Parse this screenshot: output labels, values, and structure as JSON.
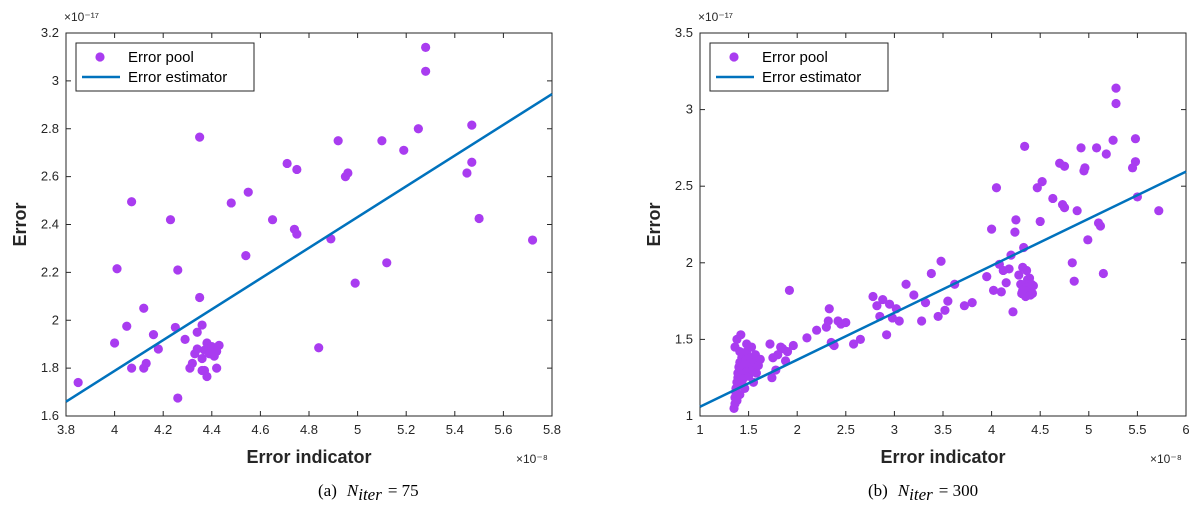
{
  "colors": {
    "points": "#a93cf0",
    "line": "#0072bd"
  },
  "chart_data": [
    {
      "type": "scatter",
      "caption": "(a)",
      "niter_value": "75",
      "xlabel": "Error indicator",
      "ylabel": "Error",
      "x_exponent": "×10⁻⁸",
      "y_exponent": "×10⁻¹⁷",
      "xlim": [
        3.8,
        5.8
      ],
      "ylim": [
        1.6,
        3.2
      ],
      "xticks": [
        3.8,
        4,
        4.2,
        4.4,
        4.6,
        4.8,
        5,
        5.2,
        5.4,
        5.6,
        5.8
      ],
      "yticks": [
        1.6,
        1.8,
        2,
        2.2,
        2.4,
        2.6,
        2.8,
        3,
        3.2
      ],
      "xtick_labels": [
        "3.8",
        "4",
        "4.2",
        "4.4",
        "4.6",
        "4.8",
        "5",
        "5.2",
        "5.4",
        "5.6",
        "5.8"
      ],
      "ytick_labels": [
        "1.6",
        "1.8",
        "2",
        "2.2",
        "2.4",
        "2.6",
        "2.8",
        "3",
        "3.2"
      ],
      "legend": {
        "position": "top-left",
        "entries": [
          "Error pool",
          "Error estimator"
        ]
      },
      "series": [
        {
          "name": "Error pool",
          "kind": "scatter",
          "points": [
            [
              3.85,
              1.74
            ],
            [
              4.0,
              1.905
            ],
            [
              4.01,
              2.215
            ],
            [
              4.05,
              1.975
            ],
            [
              4.07,
              1.8
            ],
            [
              4.07,
              2.495
            ],
            [
              4.12,
              1.8
            ],
            [
              4.12,
              2.05
            ],
            [
              4.13,
              1.82
            ],
            [
              4.16,
              1.94
            ],
            [
              4.18,
              1.88
            ],
            [
              4.23,
              2.42
            ],
            [
              4.26,
              2.21
            ],
            [
              4.26,
              1.675
            ],
            [
              4.29,
              1.92
            ],
            [
              4.31,
              1.8
            ],
            [
              4.32,
              1.82
            ],
            [
              4.33,
              1.86
            ],
            [
              4.34,
              1.95
            ],
            [
              4.35,
              2.095
            ],
            [
              4.35,
              2.765
            ],
            [
              4.36,
              1.98
            ],
            [
              4.36,
              1.84
            ],
            [
              4.37,
              1.79
            ],
            [
              4.37,
              1.875
            ],
            [
              4.38,
              1.905
            ],
            [
              4.38,
              1.765
            ],
            [
              4.39,
              1.86
            ],
            [
              4.4,
              1.89
            ],
            [
              4.41,
              1.85
            ],
            [
              4.42,
              1.8
            ],
            [
              4.43,
              1.895
            ],
            [
              4.42,
              1.87
            ],
            [
              4.36,
              1.79
            ],
            [
              4.34,
              1.88
            ],
            [
              4.25,
              1.97
            ],
            [
              4.48,
              2.49
            ],
            [
              4.54,
              2.27
            ],
            [
              4.55,
              2.535
            ],
            [
              4.65,
              2.42
            ],
            [
              4.71,
              2.655
            ],
            [
              4.74,
              2.38
            ],
            [
              4.75,
              2.36
            ],
            [
              4.75,
              2.63
            ],
            [
              4.84,
              1.885
            ],
            [
              4.89,
              2.34
            ],
            [
              4.92,
              2.75
            ],
            [
              4.95,
              2.6
            ],
            [
              4.96,
              2.615
            ],
            [
              4.99,
              2.155
            ],
            [
              5.1,
              2.75
            ],
            [
              5.12,
              2.24
            ],
            [
              5.19,
              2.71
            ],
            [
              5.25,
              2.8
            ],
            [
              5.28,
              3.14
            ],
            [
              5.28,
              3.04
            ],
            [
              5.45,
              2.615
            ],
            [
              5.47,
              2.815
            ],
            [
              5.47,
              2.66
            ],
            [
              5.5,
              2.425
            ],
            [
              5.72,
              2.335
            ]
          ]
        },
        {
          "name": "Error estimator",
          "kind": "line",
          "points": [
            [
              3.8,
              1.66
            ],
            [
              5.8,
              2.945
            ]
          ]
        }
      ]
    },
    {
      "type": "scatter",
      "caption": "(b)",
      "niter_value": "300",
      "xlabel": "Error indicator",
      "ylabel": "Error",
      "x_exponent": "×10⁻⁸",
      "y_exponent": "×10⁻¹⁷",
      "xlim": [
        1,
        6
      ],
      "ylim": [
        1,
        3.5
      ],
      "xticks": [
        1,
        1.5,
        2,
        2.5,
        3,
        3.5,
        4,
        4.5,
        5,
        5.5,
        6
      ],
      "yticks": [
        1,
        1.5,
        2,
        2.5,
        3,
        3.5
      ],
      "xtick_labels": [
        "1",
        "1.5",
        "2",
        "2.5",
        "3",
        "3.5",
        "4",
        "4.5",
        "5",
        "5.5",
        "6"
      ],
      "ytick_labels": [
        "1",
        "1.5",
        "2",
        "2.5",
        "3",
        "3.5"
      ],
      "legend": {
        "position": "top-left",
        "entries": [
          "Error pool",
          "Error estimator"
        ]
      },
      "series": [
        {
          "name": "Error pool",
          "kind": "scatter",
          "points": [
            [
              1.35,
              1.05
            ],
            [
              1.36,
              1.08
            ],
            [
              1.36,
              1.12
            ],
            [
              1.37,
              1.15
            ],
            [
              1.37,
              1.18
            ],
            [
              1.38,
              1.1
            ],
            [
              1.38,
              1.22
            ],
            [
              1.39,
              1.25
            ],
            [
              1.39,
              1.28
            ],
            [
              1.4,
              1.2
            ],
            [
              1.4,
              1.32
            ],
            [
              1.41,
              1.35
            ],
            [
              1.41,
              1.14
            ],
            [
              1.42,
              1.27
            ],
            [
              1.43,
              1.38
            ],
            [
              1.43,
              1.3
            ],
            [
              1.44,
              1.24
            ],
            [
              1.45,
              1.4
            ],
            [
              1.45,
              1.33
            ],
            [
              1.46,
              1.18
            ],
            [
              1.47,
              1.36
            ],
            [
              1.48,
              1.29
            ],
            [
              1.48,
              1.42
            ],
            [
              1.5,
              1.34
            ],
            [
              1.5,
              1.26
            ],
            [
              1.52,
              1.38
            ],
            [
              1.53,
              1.45
            ],
            [
              1.54,
              1.3
            ],
            [
              1.55,
              1.22
            ],
            [
              1.56,
              1.35
            ],
            [
              1.57,
              1.4
            ],
            [
              1.58,
              1.28
            ],
            [
              1.6,
              1.33
            ],
            [
              1.62,
              1.37
            ],
            [
              1.38,
              1.5
            ],
            [
              1.42,
              1.53
            ],
            [
              1.48,
              1.47
            ],
            [
              1.36,
              1.45
            ],
            [
              1.44,
              1.2
            ],
            [
              1.41,
              1.42
            ],
            [
              1.72,
              1.47
            ],
            [
              1.74,
              1.25
            ],
            [
              1.75,
              1.38
            ],
            [
              1.78,
              1.3
            ],
            [
              1.8,
              1.4
            ],
            [
              1.83,
              1.45
            ],
            [
              1.85,
              1.44
            ],
            [
              1.88,
              1.36
            ],
            [
              1.9,
              1.42
            ],
            [
              1.92,
              1.82
            ],
            [
              1.96,
              1.46
            ],
            [
              2.1,
              1.51
            ],
            [
              2.2,
              1.56
            ],
            [
              2.3,
              1.58
            ],
            [
              2.32,
              1.62
            ],
            [
              2.33,
              1.7
            ],
            [
              2.35,
              1.48
            ],
            [
              2.38,
              1.46
            ],
            [
              2.42,
              1.62
            ],
            [
              2.45,
              1.6
            ],
            [
              2.5,
              1.61
            ],
            [
              2.58,
              1.47
            ],
            [
              2.65,
              1.5
            ],
            [
              2.78,
              1.78
            ],
            [
              2.82,
              1.72
            ],
            [
              2.85,
              1.65
            ],
            [
              2.88,
              1.76
            ],
            [
              2.92,
              1.53
            ],
            [
              2.95,
              1.73
            ],
            [
              2.98,
              1.64
            ],
            [
              3.02,
              1.7
            ],
            [
              3.05,
              1.62
            ],
            [
              3.12,
              1.86
            ],
            [
              3.2,
              1.79
            ],
            [
              3.28,
              1.62
            ],
            [
              3.32,
              1.74
            ],
            [
              3.38,
              1.93
            ],
            [
              3.45,
              1.65
            ],
            [
              3.48,
              2.01
            ],
            [
              3.52,
              1.69
            ],
            [
              3.55,
              1.75
            ],
            [
              3.62,
              1.86
            ],
            [
              3.72,
              1.72
            ],
            [
              3.8,
              1.74
            ],
            [
              3.95,
              1.91
            ],
            [
              4.0,
              2.22
            ],
            [
              4.02,
              1.82
            ],
            [
              4.05,
              2.49
            ],
            [
              4.08,
              1.99
            ],
            [
              4.1,
              1.81
            ],
            [
              4.12,
              1.95
            ],
            [
              4.15,
              1.87
            ],
            [
              4.18,
              1.96
            ],
            [
              4.2,
              2.05
            ],
            [
              4.22,
              1.68
            ],
            [
              4.24,
              2.2
            ],
            [
              4.25,
              2.28
            ],
            [
              4.28,
              1.92
            ],
            [
              4.3,
              1.86
            ],
            [
              4.31,
              1.8
            ],
            [
              4.32,
              1.97
            ],
            [
              4.33,
              2.1
            ],
            [
              4.34,
              2.76
            ],
            [
              4.35,
              1.78
            ],
            [
              4.36,
              1.84
            ],
            [
              4.37,
              1.89
            ],
            [
              4.38,
              1.82
            ],
            [
              4.39,
              1.9
            ],
            [
              4.4,
              1.79
            ],
            [
              4.41,
              1.86
            ],
            [
              4.42,
              1.8
            ],
            [
              4.43,
              1.85
            ],
            [
              4.32,
              1.82
            ],
            [
              4.36,
              1.95
            ],
            [
              4.47,
              2.49
            ],
            [
              4.5,
              2.27
            ],
            [
              4.52,
              2.53
            ],
            [
              4.63,
              2.42
            ],
            [
              4.7,
              2.65
            ],
            [
              4.73,
              2.38
            ],
            [
              4.75,
              2.36
            ],
            [
              4.75,
              2.63
            ],
            [
              4.83,
              2.0
            ],
            [
              4.85,
              1.88
            ],
            [
              4.88,
              2.34
            ],
            [
              4.92,
              2.75
            ],
            [
              4.95,
              2.6
            ],
            [
              4.96,
              2.62
            ],
            [
              4.99,
              2.15
            ],
            [
              5.08,
              2.75
            ],
            [
              5.1,
              2.26
            ],
            [
              5.12,
              2.24
            ],
            [
              5.18,
              2.71
            ],
            [
              5.15,
              1.93
            ],
            [
              5.25,
              2.8
            ],
            [
              5.28,
              3.14
            ],
            [
              5.28,
              3.04
            ],
            [
              5.45,
              2.62
            ],
            [
              5.48,
              2.81
            ],
            [
              5.48,
              2.66
            ],
            [
              5.5,
              2.43
            ],
            [
              5.72,
              2.34
            ]
          ]
        },
        {
          "name": "Error estimator",
          "kind": "line",
          "points": [
            [
              1,
              1.06
            ],
            [
              6,
              2.595
            ]
          ]
        }
      ]
    }
  ],
  "captions": {
    "left": {
      "label": "(a)",
      "var": "N",
      "sub": "iter",
      "eq": "= 75"
    },
    "right": {
      "label": "(b)",
      "var": "N",
      "sub": "iter",
      "eq": "= 300"
    }
  }
}
